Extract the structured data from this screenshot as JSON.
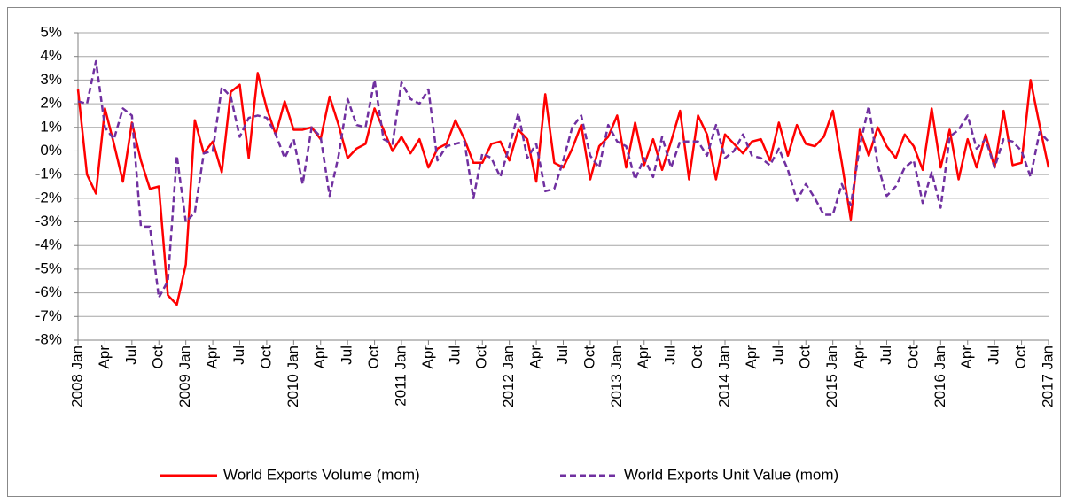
{
  "chart_data": {
    "type": "line",
    "categories": [
      "2008 Jan",
      null,
      null,
      "Apr",
      null,
      null,
      "Jul",
      null,
      null,
      "Oct",
      null,
      null,
      "2009 Jan",
      null,
      null,
      "Apr",
      null,
      null,
      "Jul",
      null,
      null,
      "Oct",
      null,
      null,
      "2010 Jan",
      null,
      null,
      "Apr",
      null,
      null,
      "Jul",
      null,
      null,
      "Oct",
      null,
      null,
      "2011 Jan",
      null,
      null,
      "Apr",
      null,
      null,
      "Jul",
      null,
      null,
      "Oct",
      null,
      null,
      "2012 Jan",
      null,
      null,
      "Apr",
      null,
      null,
      "Jul",
      null,
      null,
      "Oct",
      null,
      null,
      "2013 Jan",
      null,
      null,
      "Apr",
      null,
      null,
      "Jul",
      null,
      null,
      "Oct",
      null,
      null,
      "2014 Jan",
      null,
      null,
      "Apr",
      null,
      null,
      "Jul",
      null,
      null,
      "Oct",
      null,
      null,
      "2015 Jan",
      null,
      null,
      "Apr",
      null,
      null,
      "Jul",
      null,
      null,
      "Oct",
      null,
      null,
      "2016 Jan",
      null,
      null,
      "Apr",
      null,
      null,
      "Jul",
      null,
      null,
      "Oct",
      null,
      null,
      "2017 Jan"
    ],
    "series": [
      {
        "name": "World Exports Volume (mom)",
        "color": "#ff0000",
        "dash": false,
        "values": [
          2.6,
          -1.0,
          -1.8,
          1.8,
          0.3,
          -1.3,
          1.2,
          -0.4,
          -1.6,
          -1.5,
          -6.1,
          -6.5,
          -4.8,
          1.3,
          -0.1,
          0.4,
          -0.9,
          2.5,
          2.8,
          -0.3,
          3.3,
          1.8,
          0.7,
          2.1,
          0.9,
          0.9,
          1.0,
          0.5,
          2.3,
          1.1,
          -0.3,
          0.1,
          0.3,
          1.8,
          0.9,
          0.0,
          0.6,
          -0.1,
          0.5,
          -0.7,
          0.1,
          0.3,
          1.3,
          0.5,
          -0.5,
          -0.5,
          0.3,
          0.4,
          -0.4,
          0.9,
          0.5,
          -1.3,
          2.4,
          -0.5,
          -0.7,
          0.1,
          1.1,
          -1.2,
          0.2,
          0.6,
          1.5,
          -0.7,
          1.2,
          -0.6,
          0.5,
          -0.8,
          0.4,
          1.7,
          -1.2,
          1.5,
          0.7,
          -1.2,
          0.7,
          0.3,
          -0.1,
          0.4,
          0.5,
          -0.4,
          1.2,
          -0.2,
          1.1,
          0.3,
          0.2,
          0.6,
          1.7,
          -0.5,
          -2.9,
          0.9,
          -0.2,
          1.0,
          0.2,
          -0.3,
          0.7,
          0.2,
          -0.8,
          1.8,
          -0.7,
          0.9,
          -1.2,
          0.5,
          -0.7,
          0.7,
          -0.7,
          1.7,
          -0.6,
          -0.5,
          3.0,
          1.1,
          -0.7
        ]
      },
      {
        "name": "World Exports Unit Value (mom)",
        "color": "#7030a0",
        "dash": true,
        "values": [
          2.1,
          2.0,
          3.8,
          1.0,
          0.5,
          1.8,
          1.5,
          -3.2,
          -3.2,
          -6.2,
          -5.5,
          -0.2,
          -3.0,
          -2.6,
          -0.1,
          0.0,
          2.7,
          2.3,
          0.6,
          1.4,
          1.5,
          1.4,
          0.7,
          -0.3,
          0.5,
          -1.4,
          1.0,
          0.6,
          -1.9,
          -0.2,
          2.2,
          1.1,
          1.0,
          3.0,
          0.5,
          0.3,
          2.9,
          2.2,
          2.0,
          2.6,
          -0.4,
          0.2,
          0.3,
          0.4,
          -2.0,
          -0.1,
          -0.3,
          -1.1,
          0.2,
          1.6,
          -0.3,
          0.3,
          -1.7,
          -1.6,
          -0.4,
          1.0,
          1.5,
          -0.2,
          -0.7,
          1.1,
          0.4,
          0.2,
          -1.2,
          -0.3,
          -1.1,
          0.6,
          -0.7,
          0.4,
          0.4,
          0.4,
          -0.2,
          1.1,
          -0.3,
          0.0,
          0.7,
          -0.2,
          -0.3,
          -0.6,
          0.1,
          -0.8,
          -2.1,
          -1.4,
          -2.0,
          -2.7,
          -2.7,
          -1.4,
          -2.3,
          0.2,
          1.9,
          -0.6,
          -1.9,
          -1.5,
          -0.7,
          -0.4,
          -2.2,
          -0.9,
          -2.4,
          0.6,
          0.9,
          1.5,
          0.1,
          0.5,
          -0.7,
          0.5,
          0.4,
          0.0,
          -1.1,
          0.8,
          0.4
        ]
      }
    ],
    "ylim": [
      -8,
      5
    ],
    "yticks": [
      {
        "value": -8,
        "label": "-8%"
      },
      {
        "value": -7,
        "label": "-7%"
      },
      {
        "value": -6,
        "label": "-6%"
      },
      {
        "value": -5,
        "label": "-5%"
      },
      {
        "value": -4,
        "label": "-4%"
      },
      {
        "value": -3,
        "label": "-3%"
      },
      {
        "value": -2,
        "label": "-2%"
      },
      {
        "value": -1,
        "label": "-1%"
      },
      {
        "value": 0,
        "label": "0%"
      },
      {
        "value": 1,
        "label": "1%"
      },
      {
        "value": 2,
        "label": "2%"
      },
      {
        "value": 3,
        "label": "3%"
      },
      {
        "value": 4,
        "label": "4%"
      },
      {
        "value": 5,
        "label": "5%"
      }
    ],
    "grid": true,
    "legend": "bottom"
  }
}
